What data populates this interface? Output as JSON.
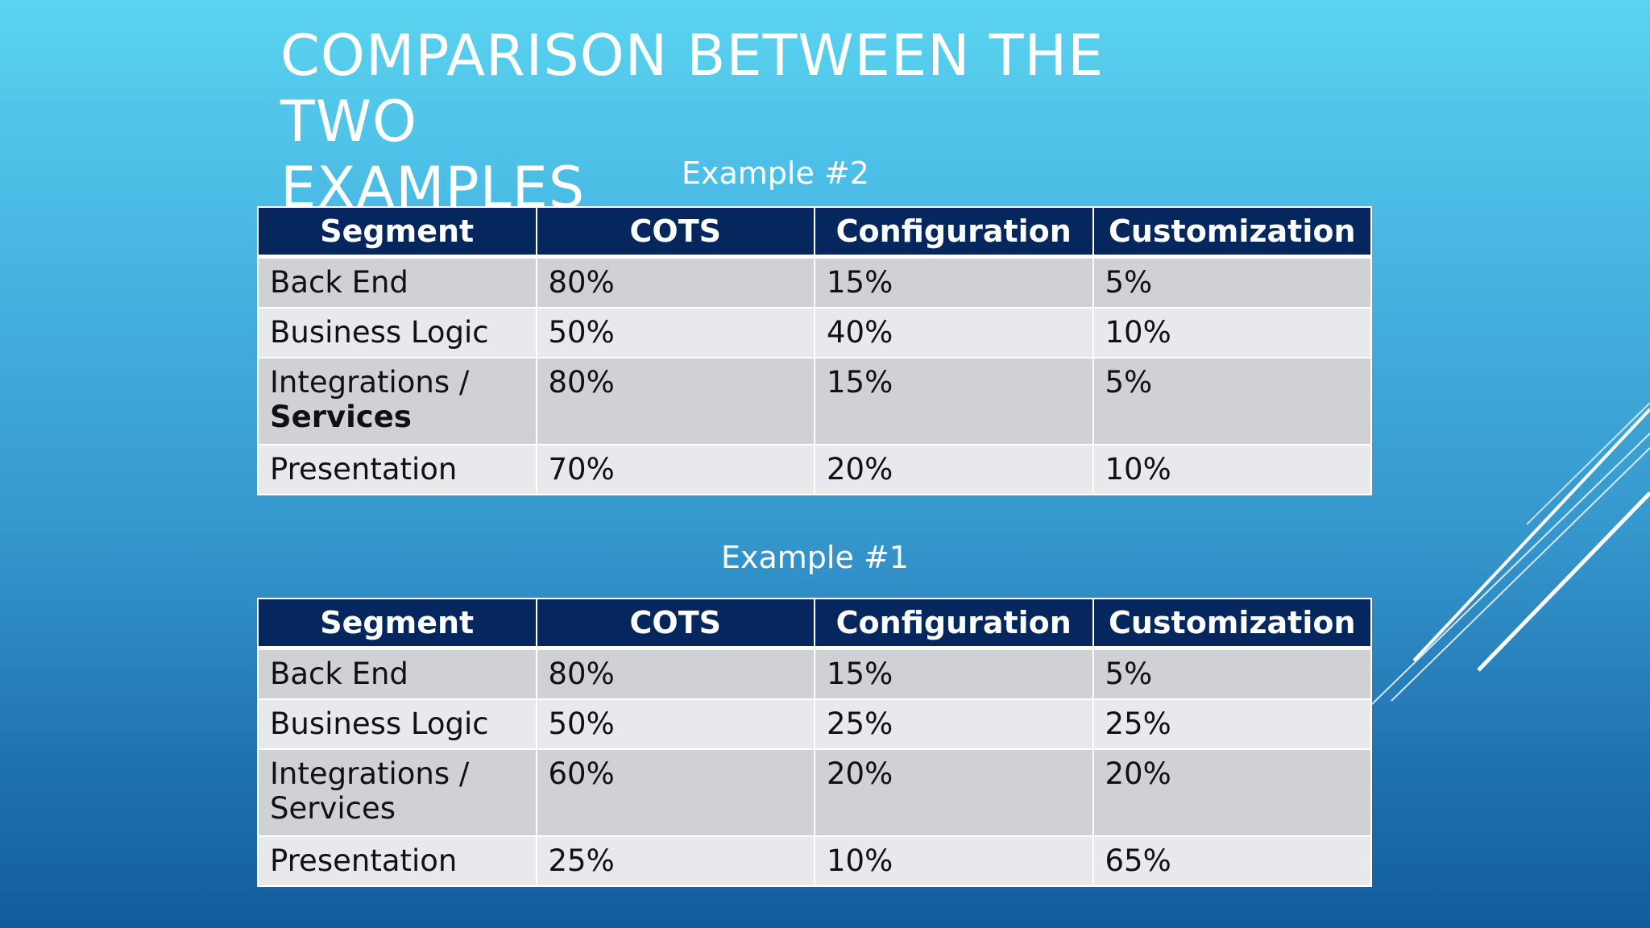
{
  "slide": {
    "title_line1": "COMPARISON BETWEEN THE TWO",
    "title_line2": "EXAMPLES"
  },
  "example2": {
    "caption": "Example #2",
    "headers": [
      "Segment",
      "COTS",
      "Configuration",
      "Customization"
    ],
    "rows": [
      {
        "segment": "Back End",
        "cots": "80%",
        "configuration": "15%",
        "customization": "5%"
      },
      {
        "segment": "Business Logic",
        "cots": "50%",
        "configuration": "40%",
        "customization": "10%"
      },
      {
        "segment_line1": "Integrations /",
        "segment_line2": "Services",
        "cots": "80%",
        "configuration": "15%",
        "customization": "5%"
      },
      {
        "segment": "Presentation",
        "cots": "70%",
        "configuration": "20%",
        "customization": "10%"
      }
    ]
  },
  "example1": {
    "caption": "Example #1",
    "headers": [
      "Segment",
      "COTS",
      "Configuration",
      "Customization"
    ],
    "rows": [
      {
        "segment": "Back End",
        "cots": "80%",
        "configuration": "15%",
        "customization": "5%"
      },
      {
        "segment": "Business Logic",
        "cots": "50%",
        "configuration": "25%",
        "customization": "25%"
      },
      {
        "segment_line1": "Integrations /",
        "segment_line2": "Services",
        "cots": "60%",
        "configuration": "20%",
        "customization": "20%"
      },
      {
        "segment": "Presentation",
        "cots": "25%",
        "configuration": "10%",
        "customization": "65%"
      }
    ]
  },
  "colors": {
    "header_bg": "#06275e",
    "row_dark": "#d0d1d5",
    "row_light": "#e8e9ed",
    "text_on_header": "#ffffff"
  }
}
